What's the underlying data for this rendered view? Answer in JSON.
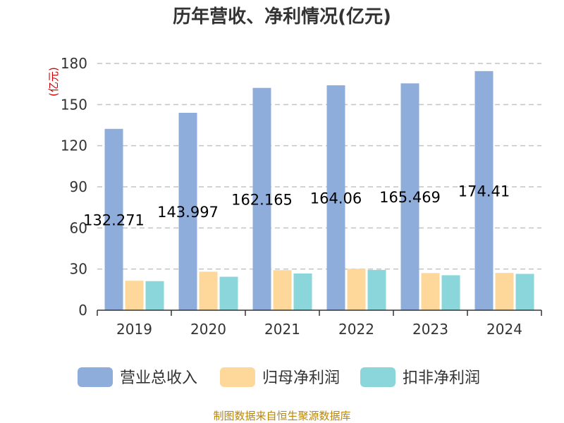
{
  "chart_data": {
    "type": "bar",
    "title": "历年营收、净利情况(亿元)",
    "ylabel": "(亿元)",
    "xlabel": "",
    "categories": [
      "2019",
      "2020",
      "2021",
      "2022",
      "2023",
      "2024"
    ],
    "ylim": [
      0,
      180
    ],
    "yticks": [
      0,
      30,
      60,
      90,
      120,
      150,
      180
    ],
    "grid": true,
    "legend_position": "bottom",
    "series": [
      {
        "name": "营业总收入",
        "color": "#8eaddb",
        "values": [
          132.271,
          143.997,
          162.165,
          164.06,
          165.469,
          174.41
        ],
        "data_labels": [
          "132.271",
          "143.997",
          "162.165",
          "164.06",
          "165.469",
          "174.41"
        ]
      },
      {
        "name": "归母净利润",
        "color": "#fdd89a",
        "values": [
          21.5,
          28.1,
          29.2,
          30.2,
          27.1,
          27.2
        ]
      },
      {
        "name": "扣非净利润",
        "color": "#8ad6da",
        "values": [
          21.2,
          24.4,
          26.8,
          29.4,
          25.5,
          26.5
        ]
      }
    ]
  },
  "source": "制图数据来自恒生聚源数据库"
}
